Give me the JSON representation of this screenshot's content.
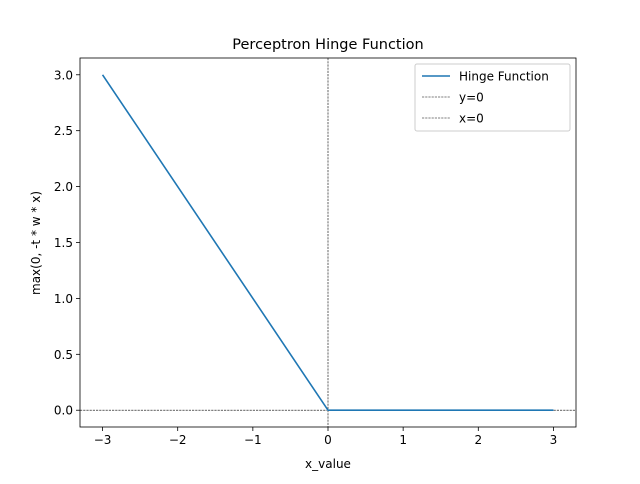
{
  "chart_data": {
    "type": "line",
    "title": "Perceptron Hinge Function",
    "xlabel": "x_value",
    "ylabel": "max(0, -t * w * x)",
    "xlim": [
      -3.3,
      3.3
    ],
    "ylim": [
      -0.15,
      3.15
    ],
    "xticks": [
      -3,
      -2,
      -1,
      0,
      1,
      2,
      3
    ],
    "xtick_labels": [
      "−3",
      "−2",
      "−1",
      "0",
      "1",
      "2",
      "3"
    ],
    "yticks": [
      0.0,
      0.5,
      1.0,
      1.5,
      2.0,
      2.5,
      3.0
    ],
    "ytick_labels": [
      "0.0",
      "0.5",
      "1.0",
      "1.5",
      "2.0",
      "2.5",
      "3.0"
    ],
    "grid": false,
    "legend_position": "top-right",
    "series": [
      {
        "name": "Hinge Function",
        "color": "#1f77b4",
        "style": "solid",
        "x": [
          -3,
          0,
          3
        ],
        "y": [
          3,
          0,
          0
        ]
      }
    ],
    "reference_lines": [
      {
        "name": "y=0",
        "orientation": "horizontal",
        "value": 0,
        "color": "#000000",
        "style": "dashed"
      },
      {
        "name": "x=0",
        "orientation": "vertical",
        "value": 0,
        "color": "#000000",
        "style": "dashed"
      }
    ]
  }
}
